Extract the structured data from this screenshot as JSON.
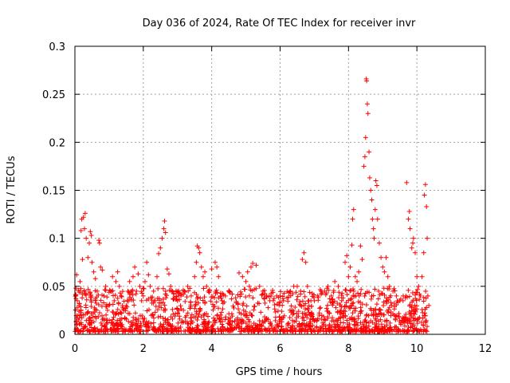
{
  "chart_data": {
    "type": "scatter",
    "title": "Day 036 of 2024, Rate Of TEC Index for receiver invr",
    "xlabel": "GPS time / hours",
    "ylabel": "ROTI / TECUs",
    "xlim": [
      0,
      12
    ],
    "ylim": [
      0,
      0.3
    ],
    "xticks": [
      0,
      2,
      4,
      6,
      8,
      10,
      12
    ],
    "yticks": [
      0,
      0.05,
      0.1,
      0.15,
      0.2,
      0.25,
      0.3
    ],
    "xtick_labels": [
      "0",
      "2",
      "4",
      "6",
      "8",
      "10",
      "12"
    ],
    "ytick_labels": [
      "0",
      "0.05",
      "0.1",
      "0.15",
      "0.2",
      "0.25",
      "0.3"
    ],
    "grid": true,
    "marker": "plus",
    "colors": {
      "marker": "#ff0000",
      "grid": "#a0a0a0",
      "axis": "#000000"
    },
    "series": [
      {
        "name": "ROTI",
        "points": [
          [
            0.03,
            0.048
          ],
          [
            0.05,
            0.062
          ],
          [
            0.07,
            0.035
          ],
          [
            0.1,
            0.015
          ],
          [
            0.12,
            0.03
          ],
          [
            0.15,
            0.055
          ],
          [
            0.18,
            0.108
          ],
          [
            0.2,
            0.12
          ],
          [
            0.22,
            0.078
          ],
          [
            0.25,
            0.122
          ],
          [
            0.28,
            0.11
          ],
          [
            0.3,
            0.126
          ],
          [
            0.33,
            0.1
          ],
          [
            0.38,
            0.08
          ],
          [
            0.42,
            0.095
          ],
          [
            0.45,
            0.107
          ],
          [
            0.48,
            0.103
          ],
          [
            0.5,
            0.075
          ],
          [
            0.55,
            0.065
          ],
          [
            0.6,
            0.058
          ],
          [
            0.65,
            0.045
          ],
          [
            0.7,
            0.098
          ],
          [
            0.72,
            0.095
          ],
          [
            0.75,
            0.07
          ],
          [
            0.8,
            0.067
          ],
          [
            0.85,
            0.04
          ],
          [
            0.9,
            0.05
          ],
          [
            1.0,
            0.03
          ],
          [
            1.05,
            0.045
          ],
          [
            1.1,
            0.06
          ],
          [
            1.15,
            0.035
          ],
          [
            1.2,
            0.055
          ],
          [
            1.25,
            0.065
          ],
          [
            1.3,
            0.05
          ],
          [
            1.35,
            0.04
          ],
          [
            1.4,
            0.028
          ],
          [
            1.5,
            0.03
          ],
          [
            1.55,
            0.045
          ],
          [
            1.6,
            0.055
          ],
          [
            1.7,
            0.06
          ],
          [
            1.75,
            0.07
          ],
          [
            1.8,
            0.045
          ],
          [
            1.85,
            0.063
          ],
          [
            1.9,
            0.05
          ],
          [
            1.95,
            0.035
          ],
          [
            2.0,
            0.04
          ],
          [
            2.05,
            0.055
          ],
          [
            2.1,
            0.075
          ],
          [
            2.15,
            0.062
          ],
          [
            2.2,
            0.05
          ],
          [
            2.25,
            0.035
          ],
          [
            2.3,
            0.045
          ],
          [
            2.35,
            0.035
          ],
          [
            2.4,
            0.06
          ],
          [
            2.45,
            0.084
          ],
          [
            2.5,
            0.09
          ],
          [
            2.55,
            0.1
          ],
          [
            2.6,
            0.11
          ],
          [
            2.62,
            0.118
          ],
          [
            2.65,
            0.106
          ],
          [
            2.7,
            0.068
          ],
          [
            2.75,
            0.063
          ],
          [
            2.8,
            0.05
          ],
          [
            2.85,
            0.045
          ],
          [
            2.9,
            0.037
          ],
          [
            3.0,
            0.035
          ],
          [
            3.1,
            0.04
          ],
          [
            3.2,
            0.045
          ],
          [
            3.3,
            0.05
          ],
          [
            3.4,
            0.04
          ],
          [
            3.5,
            0.06
          ],
          [
            3.55,
            0.075
          ],
          [
            3.58,
            0.092
          ],
          [
            3.62,
            0.09
          ],
          [
            3.65,
            0.085
          ],
          [
            3.7,
            0.07
          ],
          [
            3.75,
            0.06
          ],
          [
            3.8,
            0.065
          ],
          [
            3.85,
            0.05
          ],
          [
            3.9,
            0.045
          ],
          [
            4.0,
            0.068
          ],
          [
            4.1,
            0.075
          ],
          [
            4.15,
            0.07
          ],
          [
            4.2,
            0.06
          ],
          [
            4.3,
            0.035
          ],
          [
            4.4,
            0.04
          ],
          [
            4.5,
            0.045
          ],
          [
            4.6,
            0.042
          ],
          [
            4.7,
            0.038
          ],
          [
            4.8,
            0.064
          ],
          [
            4.9,
            0.06
          ],
          [
            5.0,
            0.055
          ],
          [
            5.05,
            0.065
          ],
          [
            5.1,
            0.05
          ],
          [
            5.15,
            0.07
          ],
          [
            5.2,
            0.074
          ],
          [
            5.3,
            0.072
          ],
          [
            5.4,
            0.05
          ],
          [
            5.5,
            0.045
          ],
          [
            5.6,
            0.04
          ],
          [
            5.7,
            0.035
          ],
          [
            5.8,
            0.035
          ],
          [
            5.9,
            0.04
          ],
          [
            6.0,
            0.04
          ],
          [
            6.1,
            0.035
          ],
          [
            6.2,
            0.038
          ],
          [
            6.3,
            0.045
          ],
          [
            6.4,
            0.05
          ],
          [
            6.5,
            0.05
          ],
          [
            6.6,
            0.045
          ],
          [
            6.65,
            0.078
          ],
          [
            6.7,
            0.085
          ],
          [
            6.75,
            0.075
          ],
          [
            6.8,
            0.05
          ],
          [
            6.9,
            0.035
          ],
          [
            7.0,
            0.035
          ],
          [
            7.1,
            0.04
          ],
          [
            7.2,
            0.045
          ],
          [
            7.3,
            0.045
          ],
          [
            7.4,
            0.05
          ],
          [
            7.5,
            0.04
          ],
          [
            7.6,
            0.055
          ],
          [
            7.7,
            0.05
          ],
          [
            7.8,
            0.035
          ],
          [
            7.9,
            0.075
          ],
          [
            7.95,
            0.082
          ],
          [
            8.0,
            0.06
          ],
          [
            8.05,
            0.07
          ],
          [
            8.1,
            0.093
          ],
          [
            8.12,
            0.12
          ],
          [
            8.15,
            0.13
          ],
          [
            8.2,
            0.06
          ],
          [
            8.25,
            0.055
          ],
          [
            8.3,
            0.065
          ],
          [
            8.35,
            0.092
          ],
          [
            8.4,
            0.078
          ],
          [
            8.45,
            0.175
          ],
          [
            8.48,
            0.185
          ],
          [
            8.5,
            0.205
          ],
          [
            8.52,
            0.266
          ],
          [
            8.53,
            0.264
          ],
          [
            8.55,
            0.24
          ],
          [
            8.57,
            0.23
          ],
          [
            8.6,
            0.19
          ],
          [
            8.62,
            0.163
          ],
          [
            8.65,
            0.15
          ],
          [
            8.68,
            0.14
          ],
          [
            8.7,
            0.12
          ],
          [
            8.73,
            0.11
          ],
          [
            8.75,
            0.1
          ],
          [
            8.78,
            0.13
          ],
          [
            8.8,
            0.16
          ],
          [
            8.83,
            0.155
          ],
          [
            8.85,
            0.12
          ],
          [
            8.9,
            0.095
          ],
          [
            8.95,
            0.08
          ],
          [
            9.0,
            0.07
          ],
          [
            9.05,
            0.065
          ],
          [
            9.1,
            0.08
          ],
          [
            9.15,
            0.06
          ],
          [
            9.2,
            0.05
          ],
          [
            9.3,
            0.045
          ],
          [
            9.4,
            0.04
          ],
          [
            9.5,
            0.035
          ],
          [
            9.6,
            0.04
          ],
          [
            9.7,
            0.158
          ],
          [
            9.75,
            0.12
          ],
          [
            9.78,
            0.128
          ],
          [
            9.8,
            0.11
          ],
          [
            9.85,
            0.09
          ],
          [
            9.88,
            0.095
          ],
          [
            9.9,
            0.1
          ],
          [
            9.95,
            0.085
          ],
          [
            10.0,
            0.06
          ],
          [
            10.05,
            0.05
          ],
          [
            10.1,
            0.04
          ],
          [
            10.15,
            0.06
          ],
          [
            10.2,
            0.085
          ],
          [
            10.22,
            0.145
          ],
          [
            10.25,
            0.156
          ],
          [
            10.28,
            0.133
          ],
          [
            10.3,
            0.1
          ],
          [
            10.32,
            0.04
          ],
          [
            10.35,
            0.03
          ]
        ]
      }
    ]
  }
}
